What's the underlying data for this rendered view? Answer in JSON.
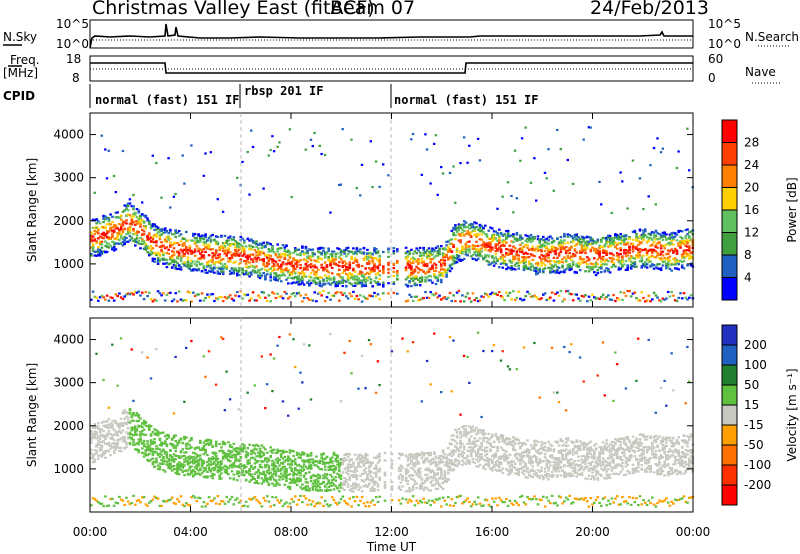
{
  "header": {
    "title": "Christmas Valley East (fitACF)",
    "beam": "Beam 07",
    "date": "24/Feb/2013"
  },
  "panels": {
    "nsky_label": "N.Sky",
    "nsearch_label": "N.Search",
    "noise_ticks_left": [
      "10^5",
      "10^0"
    ],
    "noise_ticks_right": [
      "10^5",
      "10^0"
    ],
    "freq_label_1": "Freq.",
    "freq_label_2": "[MHz]",
    "freq_ticks": [
      "18",
      "8"
    ],
    "nave_label": "Nave",
    "nave_ticks": [
      "60",
      "0"
    ],
    "cpid_label": "CPID",
    "cpid_segments": [
      {
        "label": "normal (fast) 151 IF",
        "start_hour": 0,
        "end_hour": 6
      },
      {
        "label": "rbsp 201 IF",
        "start_hour": 6,
        "end_hour": 12
      },
      {
        "label": "normal (fast) 151 IF",
        "start_hour": 12,
        "end_hour": 24
      }
    ]
  },
  "colors": {
    "power": [
      "#0000ff",
      "#2060c0",
      "#40a040",
      "#60c060",
      "#ffd000",
      "#ff8000",
      "#ff4000",
      "#ff0000"
    ],
    "velocity": [
      "#2030c0",
      "#2060c0",
      "#208030",
      "#60c040",
      "#c8c8c0",
      "#ffa000",
      "#ff7000",
      "#ff3000",
      "#ff0000"
    ]
  },
  "chart_data": [
    {
      "type": "heatmap",
      "name": "power-panel",
      "ylabel": "Slant Range [km]",
      "ylim": [
        0,
        4500
      ],
      "xlim_hours": [
        0,
        24
      ],
      "yticks": [
        1000,
        2000,
        3000,
        4000
      ],
      "colorbar": {
        "label": "Power [dB]",
        "ticks": [
          4,
          8,
          12,
          16,
          20,
          24,
          28
        ]
      },
      "trace": [
        [
          0.0,
          1600
        ],
        [
          1.0,
          1800
        ],
        [
          1.5,
          2000
        ],
        [
          2.0,
          1800
        ],
        [
          2.5,
          1500
        ],
        [
          3.0,
          1400
        ],
        [
          4.0,
          1300
        ],
        [
          5.0,
          1250
        ],
        [
          6.0,
          1200
        ],
        [
          7.0,
          1100
        ],
        [
          8.0,
          1000
        ],
        [
          9.0,
          950
        ],
        [
          10.0,
          950
        ],
        [
          11.0,
          950
        ],
        [
          12.0,
          950
        ],
        [
          13.0,
          950
        ],
        [
          14.0,
          1000
        ],
        [
          14.5,
          1500
        ],
        [
          15.0,
          1600
        ],
        [
          16.0,
          1400
        ],
        [
          17.0,
          1300
        ],
        [
          18.0,
          1200
        ],
        [
          19.0,
          1300
        ],
        [
          20.0,
          1200
        ],
        [
          21.0,
          1300
        ],
        [
          22.0,
          1400
        ],
        [
          23.0,
          1300
        ],
        [
          24.0,
          1400
        ]
      ]
    },
    {
      "type": "heatmap",
      "name": "velocity-panel",
      "ylabel": "Slant Range [km]",
      "ylim": [
        0,
        4500
      ],
      "xlim_hours": [
        0,
        24
      ],
      "yticks": [
        1000,
        2000,
        3000,
        4000
      ],
      "xticks": [
        "00:00",
        "04:00",
        "08:00",
        "12:00",
        "16:00",
        "20:00",
        "00:00"
      ],
      "xlabel": "Time UT",
      "colorbar": {
        "label": "Velocity [m s⁻¹]",
        "ticks": [
          "200",
          "100",
          "50",
          "15",
          "-15",
          "-50",
          "-100",
          "-200"
        ]
      }
    }
  ]
}
